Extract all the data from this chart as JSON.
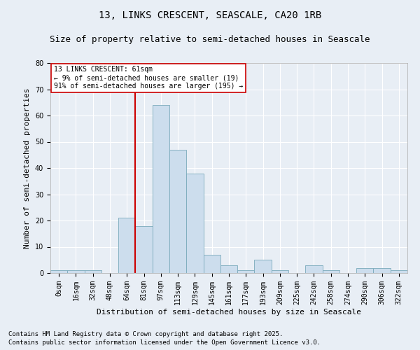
{
  "title1": "13, LINKS CRESCENT, SEASCALE, CA20 1RB",
  "title2": "Size of property relative to semi-detached houses in Seascale",
  "xlabel": "Distribution of semi-detached houses by size in Seascale",
  "ylabel": "Number of semi-detached properties",
  "categories": [
    "0sqm",
    "16sqm",
    "32sqm",
    "48sqm",
    "64sqm",
    "81sqm",
    "97sqm",
    "113sqm",
    "129sqm",
    "145sqm",
    "161sqm",
    "177sqm",
    "193sqm",
    "209sqm",
    "225sqm",
    "242sqm",
    "258sqm",
    "274sqm",
    "290sqm",
    "306sqm",
    "322sqm"
  ],
  "values": [
    1,
    1,
    1,
    0,
    21,
    18,
    64,
    47,
    38,
    7,
    3,
    1,
    5,
    1,
    0,
    3,
    1,
    0,
    2,
    2,
    1
  ],
  "bar_color": "#ccdded",
  "bar_edge_color": "#7aaabb",
  "vline_pos": 4.5,
  "annotation_title": "13 LINKS CRESCENT: 61sqm",
  "annotation_line1": "← 9% of semi-detached houses are smaller (19)",
  "annotation_line2": "91% of semi-detached houses are larger (195) →",
  "vline_color": "#cc0000",
  "annotation_box_color": "#ffffff",
  "annotation_box_edge": "#cc0000",
  "footer1": "Contains HM Land Registry data © Crown copyright and database right 2025.",
  "footer2": "Contains public sector information licensed under the Open Government Licence v3.0.",
  "ylim": [
    0,
    80
  ],
  "yticks": [
    0,
    10,
    20,
    30,
    40,
    50,
    60,
    70,
    80
  ],
  "bg_color": "#e8eef5",
  "grid_color": "#ffffff",
  "title_fontsize": 10,
  "subtitle_fontsize": 9,
  "axis_label_fontsize": 8,
  "tick_fontsize": 7,
  "annotation_fontsize": 7,
  "footer_fontsize": 6.5
}
